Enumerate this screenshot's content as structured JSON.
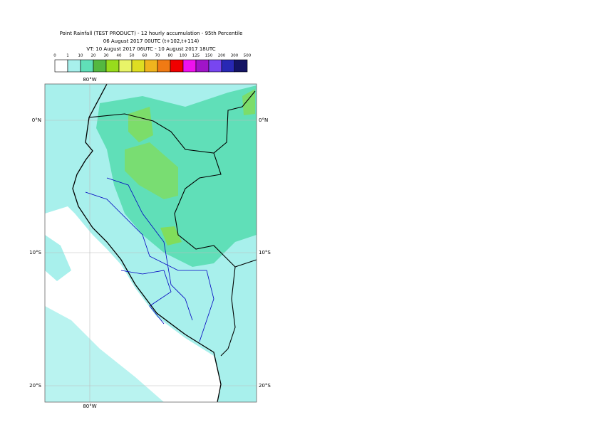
{
  "header": {
    "title": "Point Rainfall (TEST PRODUCT) - 12 hourly accumulation - 95th Percentile",
    "base": "06 August 2017 00UTC (t+102,t+114)",
    "valid": "VT: 10 August 2017 06UTC - 10 August 2017 18UTC"
  },
  "legend": {
    "ticks": [
      0,
      1,
      10,
      20,
      30,
      40,
      50,
      60,
      70,
      80,
      100,
      125,
      150,
      200,
      300,
      500
    ],
    "colors": [
      "#ffffff",
      "#a8f0ec",
      "#60dfb8",
      "#54b840",
      "#98dc1c",
      "#e8f468",
      "#dede22",
      "#f0b41e",
      "#f07a14",
      "#f00000",
      "#ee12ee",
      "#a014c8",
      "#7846f0",
      "#2828b4",
      "#141464"
    ]
  },
  "map": {
    "lon_label": "80°W",
    "lat_labels": [
      "0°N",
      "10°S",
      "20°S"
    ]
  }
}
